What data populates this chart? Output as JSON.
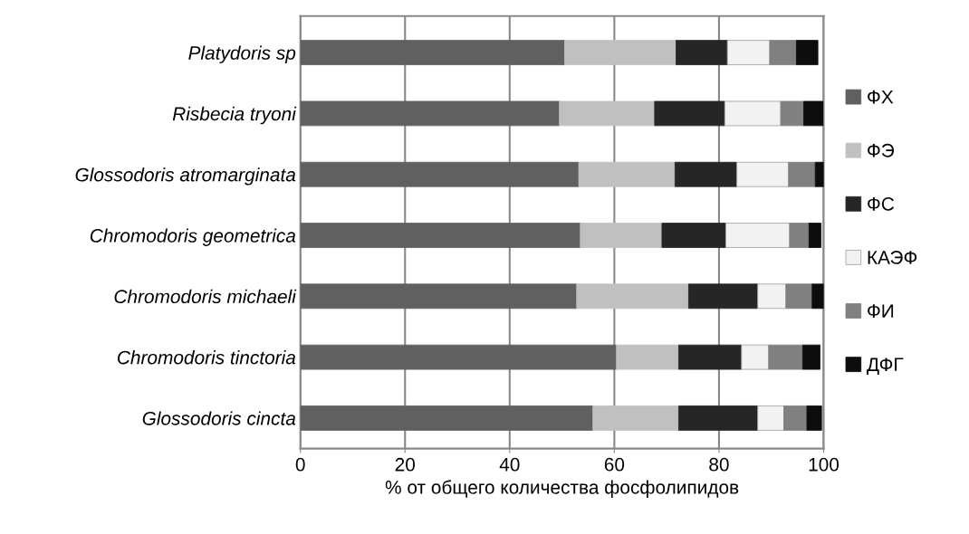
{
  "chart_data": {
    "type": "bar",
    "orientation": "horizontal",
    "stacked": true,
    "categories": [
      "Platydoris sp",
      "Risbecia tryoni",
      "Glossodoris atromarginata",
      "Chromodoris geometrica",
      "Chromodoris michaeli",
      "Chromodoris tinctoria",
      "Glossodoris cincta"
    ],
    "series": [
      {
        "name": "ФХ",
        "color": "#606060",
        "values": [
          50.5,
          49.5,
          53.2,
          53.5,
          52.8,
          60.4,
          55.9
        ]
      },
      {
        "name": "ФЭ",
        "color": "#c0c0c0",
        "values": [
          21.3,
          18.2,
          18.4,
          15.6,
          21.4,
          11.9,
          16.4
        ]
      },
      {
        "name": "ФС",
        "color": "#262626",
        "values": [
          9.8,
          13.4,
          11.8,
          12.2,
          13.2,
          12.0,
          15.1
        ]
      },
      {
        "name": "КАЭФ",
        "color": "#f2f2f2",
        "values": [
          8.1,
          10.7,
          9.9,
          12.2,
          5.4,
          5.2,
          5.0
        ]
      },
      {
        "name": "ФИ",
        "color": "#808080",
        "values": [
          5.1,
          4.4,
          5.1,
          3.7,
          5.0,
          6.5,
          4.4
        ]
      },
      {
        "name": "ДФГ",
        "color": "#0d0d0d",
        "values": [
          4.1,
          3.7,
          1.6,
          2.3,
          2.2,
          3.3,
          2.8
        ]
      }
    ],
    "xlabel": "% от общего количества фосфолипидов",
    "xlim": [
      0,
      100
    ],
    "xticks": [
      0,
      20,
      40,
      60,
      80,
      100
    ],
    "grid": "x",
    "legend": "right"
  }
}
